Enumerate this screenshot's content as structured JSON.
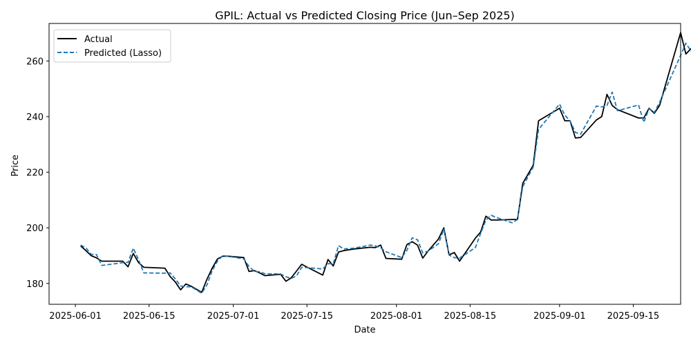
{
  "chart_data": {
    "type": "line",
    "title": "GPIL: Actual vs Predicted Closing Price (Jun–Sep 2025)",
    "xlabel": "Date",
    "ylabel": "Price",
    "xlim": [
      "2025-05-27",
      "2025-09-24"
    ],
    "ylim": [
      172.5,
      273.5
    ],
    "x_ticks": [
      "2025-06-01",
      "2025-06-15",
      "2025-07-01",
      "2025-07-15",
      "2025-08-01",
      "2025-08-15",
      "2025-09-01",
      "2025-09-15"
    ],
    "y_ticks": [
      180,
      200,
      220,
      240,
      260
    ],
    "grid": false,
    "legend": "top-left",
    "series": [
      {
        "name": "Actual",
        "color": "#000000",
        "style": "solid",
        "points": [
          [
            "2025-06-02",
            193.5
          ],
          [
            "2025-06-03",
            191.8
          ],
          [
            "2025-06-04",
            190.0
          ],
          [
            "2025-06-05",
            189.2
          ],
          [
            "2025-06-06",
            188.0
          ],
          [
            "2025-06-09",
            188.0
          ],
          [
            "2025-06-10",
            188.0
          ],
          [
            "2025-06-11",
            186.0
          ],
          [
            "2025-06-12",
            190.8
          ],
          [
            "2025-06-13",
            187.5
          ],
          [
            "2025-06-14",
            185.8
          ],
          [
            "2025-06-18",
            185.5
          ],
          [
            "2025-06-19",
            182.5
          ],
          [
            "2025-06-20",
            180.5
          ],
          [
            "2025-06-21",
            177.7
          ],
          [
            "2025-06-22",
            179.8
          ],
          [
            "2025-06-23",
            179.0
          ],
          [
            "2025-06-25",
            176.8
          ],
          [
            "2025-06-26",
            181.5
          ],
          [
            "2025-06-27",
            185.5
          ],
          [
            "2025-06-28",
            188.8
          ],
          [
            "2025-06-29",
            189.8
          ],
          [
            "2025-06-30",
            189.8
          ],
          [
            "2025-07-03",
            189.3
          ],
          [
            "2025-07-04",
            184.3
          ],
          [
            "2025-07-05",
            184.6
          ],
          [
            "2025-07-06",
            183.8
          ],
          [
            "2025-07-07",
            182.8
          ],
          [
            "2025-07-10",
            183.3
          ],
          [
            "2025-07-11",
            180.8
          ],
          [
            "2025-07-12",
            182.0
          ],
          [
            "2025-07-13",
            184.4
          ],
          [
            "2025-07-14",
            186.9
          ],
          [
            "2025-07-15",
            185.9
          ],
          [
            "2025-07-18",
            183.0
          ],
          [
            "2025-07-19",
            188.6
          ],
          [
            "2025-07-20",
            186.3
          ],
          [
            "2025-07-21",
            191.3
          ],
          [
            "2025-07-22",
            191.8
          ],
          [
            "2025-07-24",
            192.4
          ],
          [
            "2025-07-27",
            193.0
          ],
          [
            "2025-07-28",
            192.9
          ],
          [
            "2025-07-29",
            193.8
          ],
          [
            "2025-07-30",
            189.0
          ],
          [
            "2025-08-02",
            188.7
          ],
          [
            "2025-08-03",
            194.0
          ],
          [
            "2025-08-04",
            195.0
          ],
          [
            "2025-08-05",
            193.8
          ],
          [
            "2025-08-06",
            189.1
          ],
          [
            "2025-08-07",
            191.6
          ],
          [
            "2025-08-09",
            196.0
          ],
          [
            "2025-08-10",
            200.0
          ],
          [
            "2025-08-11",
            190.3
          ],
          [
            "2025-08-12",
            191.1
          ],
          [
            "2025-08-13",
            188.0
          ],
          [
            "2025-08-16",
            196.3
          ],
          [
            "2025-08-17",
            198.5
          ],
          [
            "2025-08-18",
            204.2
          ],
          [
            "2025-08-19",
            202.8
          ],
          [
            "2025-08-20",
            202.8
          ],
          [
            "2025-08-23",
            203.0
          ],
          [
            "2025-08-24",
            203.0
          ],
          [
            "2025-08-25",
            216.0
          ],
          [
            "2025-08-27",
            222.5
          ],
          [
            "2025-08-28",
            238.5
          ],
          [
            "2025-09-01",
            243.0
          ],
          [
            "2025-09-02",
            238.5
          ],
          [
            "2025-09-03",
            238.5
          ],
          [
            "2025-09-04",
            232.3
          ],
          [
            "2025-09-05",
            232.5
          ],
          [
            "2025-09-08",
            238.8
          ],
          [
            "2025-09-09",
            240.0
          ],
          [
            "2025-09-10",
            248.0
          ],
          [
            "2025-09-11",
            244.0
          ],
          [
            "2025-09-12",
            242.5
          ],
          [
            "2025-09-16",
            239.5
          ],
          [
            "2025-09-17",
            239.5
          ],
          [
            "2025-09-18",
            243.0
          ],
          [
            "2025-09-19",
            241.2
          ],
          [
            "2025-09-20",
            244.0
          ],
          [
            "2025-09-24",
            270.2
          ],
          [
            "2025-09-25",
            262.5
          ],
          [
            "2025-09-26",
            264.5
          ],
          [
            "2025-09-27",
            260.3
          ]
        ]
      },
      {
        "name": "Predicted (Lasso)",
        "color": "#1f77b4",
        "style": "dashed",
        "points": [
          [
            "2025-06-02",
            193.8
          ],
          [
            "2025-06-03",
            192.8
          ],
          [
            "2025-06-04",
            190.5
          ],
          [
            "2025-06-05",
            190.4
          ],
          [
            "2025-06-06",
            186.5
          ],
          [
            "2025-06-09",
            187.2
          ],
          [
            "2025-06-10",
            187.5
          ],
          [
            "2025-06-11",
            187.6
          ],
          [
            "2025-06-12",
            192.7
          ],
          [
            "2025-06-13",
            188.5
          ],
          [
            "2025-06-14",
            183.8
          ],
          [
            "2025-06-18",
            183.7
          ],
          [
            "2025-06-19",
            183.8
          ],
          [
            "2025-06-20",
            181.6
          ],
          [
            "2025-06-21",
            179.1
          ],
          [
            "2025-06-22",
            178.8
          ],
          [
            "2025-06-23",
            178.8
          ],
          [
            "2025-06-25",
            176.5
          ],
          [
            "2025-06-26",
            179.5
          ],
          [
            "2025-06-27",
            184.6
          ],
          [
            "2025-06-28",
            188.0
          ],
          [
            "2025-06-29",
            190.0
          ],
          [
            "2025-06-30",
            189.8
          ],
          [
            "2025-07-03",
            188.8
          ],
          [
            "2025-07-04",
            186.1
          ],
          [
            "2025-07-05",
            184.3
          ],
          [
            "2025-07-06",
            184.2
          ],
          [
            "2025-07-07",
            183.5
          ],
          [
            "2025-07-10",
            183.4
          ],
          [
            "2025-07-11",
            182.4
          ],
          [
            "2025-07-12",
            181.8
          ],
          [
            "2025-07-13",
            182.7
          ],
          [
            "2025-07-14",
            185.8
          ],
          [
            "2025-07-15",
            185.7
          ],
          [
            "2025-07-18",
            185.2
          ],
          [
            "2025-07-19",
            187.1
          ],
          [
            "2025-07-20",
            187.1
          ],
          [
            "2025-07-21",
            193.6
          ],
          [
            "2025-07-22",
            192.4
          ],
          [
            "2025-07-24",
            192.7
          ],
          [
            "2025-07-27",
            193.8
          ],
          [
            "2025-07-28",
            193.5
          ],
          [
            "2025-07-29",
            192.8
          ],
          [
            "2025-07-30",
            191.4
          ],
          [
            "2025-08-02",
            189.3
          ],
          [
            "2025-08-03",
            191.9
          ],
          [
            "2025-08-04",
            196.4
          ],
          [
            "2025-08-05",
            195.7
          ],
          [
            "2025-08-06",
            191.0
          ],
          [
            "2025-08-07",
            191.6
          ],
          [
            "2025-08-09",
            194.3
          ],
          [
            "2025-08-10",
            199.5
          ],
          [
            "2025-08-11",
            190.2
          ],
          [
            "2025-08-12",
            189.3
          ],
          [
            "2025-08-13",
            189.1
          ],
          [
            "2025-08-16",
            192.9
          ],
          [
            "2025-08-17",
            198.0
          ],
          [
            "2025-08-18",
            202.8
          ],
          [
            "2025-08-19",
            204.5
          ],
          [
            "2025-08-20",
            203.7
          ],
          [
            "2025-08-23",
            201.8
          ],
          [
            "2025-08-24",
            203.0
          ],
          [
            "2025-08-25",
            214.8
          ],
          [
            "2025-08-27",
            221.9
          ],
          [
            "2025-08-28",
            235.4
          ],
          [
            "2025-09-01",
            244.5
          ],
          [
            "2025-09-02",
            240.5
          ],
          [
            "2025-09-03",
            238.5
          ],
          [
            "2025-09-04",
            234.3
          ],
          [
            "2025-09-05",
            233.7
          ],
          [
            "2025-09-08",
            243.8
          ],
          [
            "2025-09-09",
            243.5
          ],
          [
            "2025-09-10",
            244.0
          ],
          [
            "2025-09-11",
            248.8
          ],
          [
            "2025-09-12",
            242.1
          ],
          [
            "2025-09-16",
            244.2
          ],
          [
            "2025-09-17",
            238.0
          ],
          [
            "2025-09-18",
            242.8
          ],
          [
            "2025-09-19",
            241.5
          ],
          [
            "2025-09-20",
            245.1
          ],
          [
            "2025-09-24",
            262.0
          ],
          [
            "2025-09-25",
            266.4
          ],
          [
            "2025-09-26",
            263.5
          ],
          [
            "2025-09-27",
            261.2
          ]
        ]
      }
    ]
  }
}
